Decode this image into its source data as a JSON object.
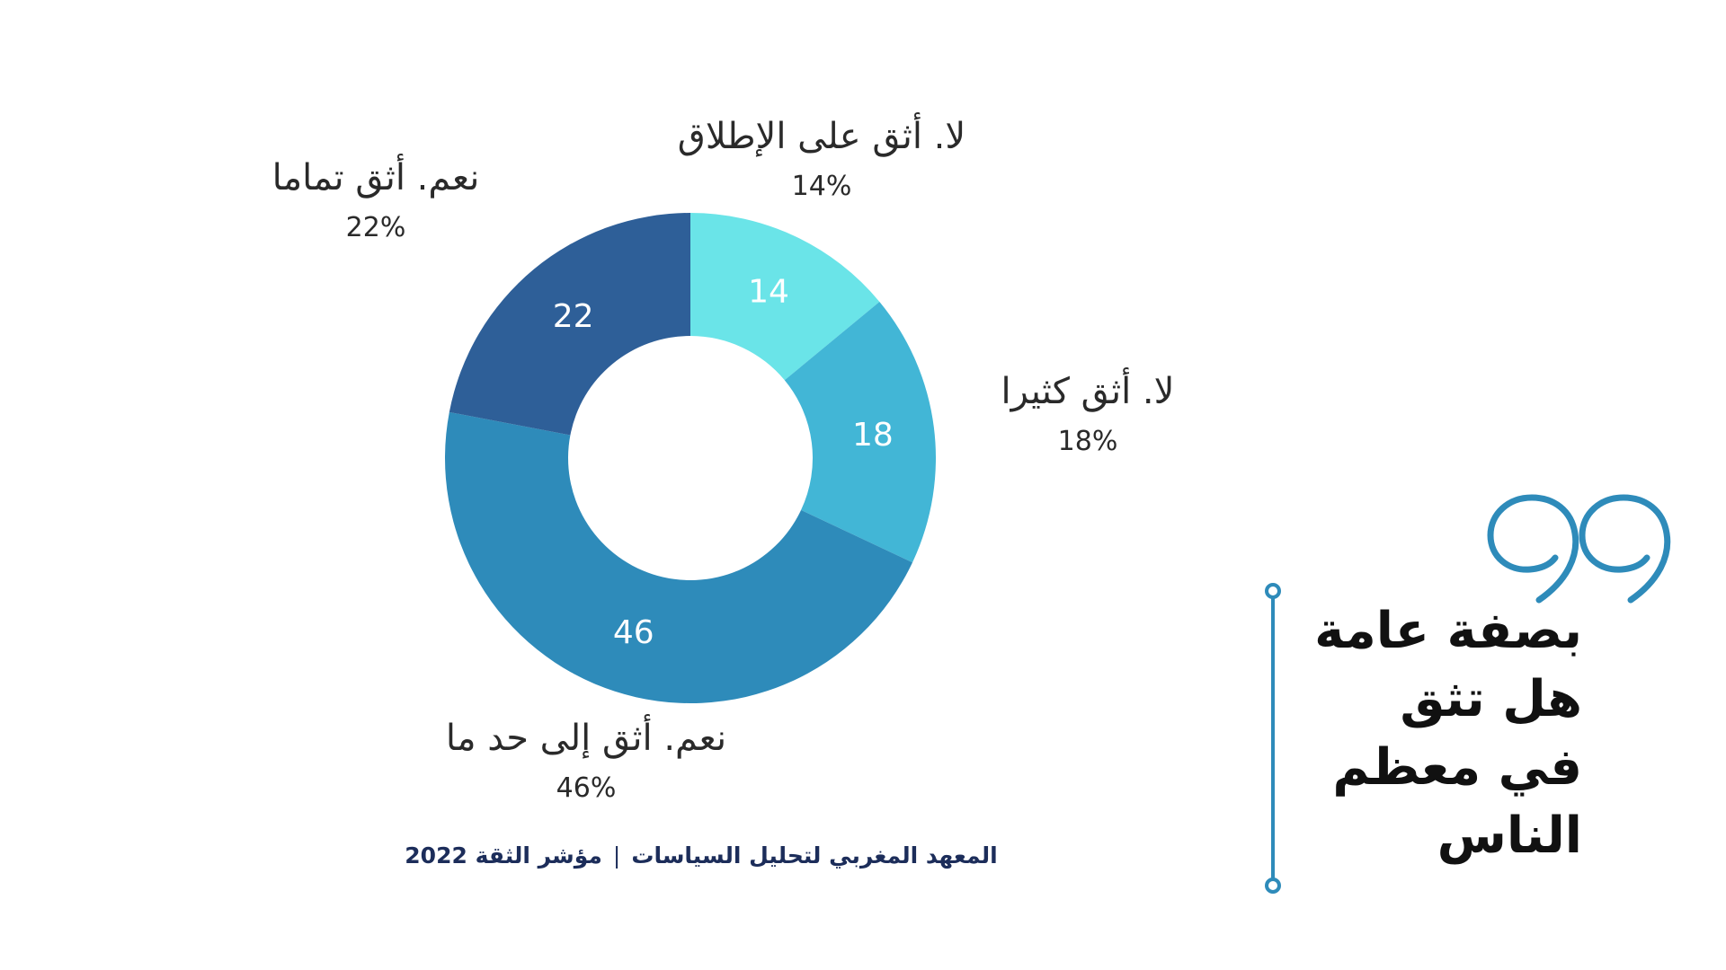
{
  "chart_data": {
    "type": "pie",
    "donut": true,
    "categories": [
      "لا. أثق على الإطلاق",
      "لا. أثق كثيرا",
      "نعم. أثق إلى حد ما",
      "نعم. أثق تماما"
    ],
    "values": [
      14,
      18,
      46,
      22
    ],
    "value_labels": [
      "14",
      "18",
      "46",
      "22"
    ],
    "percent_labels": [
      "14%",
      "18%",
      "46%",
      "22%"
    ],
    "colors": [
      "#6ae4e8",
      "#42b6d6",
      "#2e8bba",
      "#2e5f98"
    ],
    "legend": "none"
  },
  "question": {
    "lines": [
      "بصفة عامة",
      "هل تثق",
      "في معظم",
      "الناس"
    ]
  },
  "footer": {
    "source": "المعهد المغربي لتحليل السياسات",
    "separator": "|",
    "title": "مؤشر الثقة 2022"
  },
  "colors": {
    "accent": "#2e8bba",
    "footer_text": "#1c2d5a"
  },
  "icons": {
    "quote": "quote-mark-icon"
  }
}
